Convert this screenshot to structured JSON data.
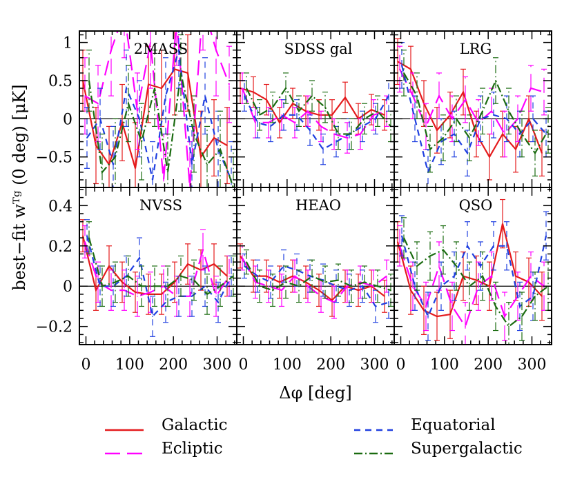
{
  "figure": {
    "xlabel": "Δφ [deg]",
    "ylabel": "best−fit wᵀᵍ (0 deg) [μK]",
    "x_ticks": [
      0,
      100,
      200,
      300
    ],
    "legend": [
      {
        "name": "Galactic",
        "color": "#e41a1c",
        "dash": "solid"
      },
      {
        "name": "Ecliptic",
        "color": "#ff00ff",
        "dash": "long-dash"
      },
      {
        "name": "Equatorial",
        "color": "#1f3fe0",
        "dash": "dash"
      },
      {
        "name": "Supergalactic",
        "color": "#1a6b10",
        "dash": "dash-dot"
      }
    ]
  },
  "chart_data": [
    {
      "type": "line",
      "title": "2MASS",
      "xlim": [
        -15,
        345
      ],
      "ylim": [
        -0.9,
        1.15
      ],
      "y_ticks": [
        -0.5,
        0,
        0.5,
        1
      ],
      "y_tick_labels": [
        "−0.5",
        "0",
        "0.5",
        "1"
      ],
      "x": [
        0,
        30,
        60,
        90,
        120,
        150,
        180,
        210,
        240,
        270,
        300,
        330
      ],
      "series": [
        {
          "name": "Galactic",
          "values": [
            0.5,
            -0.35,
            -0.6,
            -0.05,
            -0.65,
            0.45,
            0.4,
            0.65,
            0.6,
            -0.5,
            -0.25,
            -0.35
          ],
          "err": [
            0.4,
            0.5,
            0.5,
            0.5,
            0.6,
            0.5,
            0.5,
            0.6,
            0.5,
            0.6,
            0.5,
            0.5
          ]
        },
        {
          "name": "Ecliptic",
          "values": [
            0.3,
            0.2,
            0.9,
            1.4,
            0.1,
            1.0,
            -0.8,
            1.3,
            -0.9,
            1.5,
            0.9,
            0.45
          ],
          "err": [
            0.5,
            0.5,
            0.6,
            0.6,
            0.5,
            0.6,
            0.6,
            0.6,
            0.6,
            0.6,
            0.6,
            0.5
          ]
        },
        {
          "name": "Equatorial",
          "values": [
            -0.25,
            0.0,
            -0.6,
            0.4,
            0.0,
            -0.8,
            0.3,
            0.9,
            -0.6,
            0.3,
            -0.4,
            -0.8
          ],
          "err": [
            0.4,
            0.4,
            0.5,
            0.5,
            0.5,
            0.5,
            0.5,
            0.5,
            0.5,
            0.5,
            0.5,
            0.5
          ]
        },
        {
          "name": "Supergalactic",
          "values": [
            0.5,
            -0.7,
            -0.5,
            0.2,
            -0.3,
            0.4,
            -0.7,
            0.6,
            -0.2,
            -0.6,
            -0.4,
            -0.9
          ],
          "err": [
            0.4,
            0.5,
            0.5,
            0.5,
            0.5,
            0.5,
            0.5,
            0.5,
            0.5,
            0.5,
            0.5,
            0.5
          ]
        }
      ]
    },
    {
      "type": "line",
      "title": "SDSS gal",
      "xlim": [
        -15,
        345
      ],
      "ylim": [
        -0.9,
        1.15
      ],
      "y_ticks": [
        -0.5,
        0,
        0.5,
        1
      ],
      "y_tick_labels": [
        "−0.5",
        "0",
        "0.5",
        "1"
      ],
      "x": [
        0,
        30,
        60,
        90,
        120,
        150,
        180,
        210,
        240,
        270,
        300,
        330
      ],
      "series": [
        {
          "name": "Galactic",
          "values": [
            0.4,
            0.35,
            0.25,
            -0.05,
            0.2,
            0.1,
            0.05,
            0.05,
            0.28,
            0.0,
            0.12,
            0.05
          ],
          "err": [
            0.2,
            0.2,
            0.2,
            0.2,
            0.2,
            0.2,
            0.2,
            0.2,
            0.2,
            0.2,
            0.2,
            0.2
          ]
        },
        {
          "name": "Ecliptic",
          "values": [
            0.4,
            -0.05,
            -0.05,
            0.05,
            -0.05,
            0.1,
            -0.1,
            -0.2,
            -0.25,
            -0.2,
            0.05,
            0.1
          ],
          "err": [
            0.2,
            0.2,
            0.2,
            0.2,
            0.2,
            0.2,
            0.2,
            0.2,
            0.2,
            0.2,
            0.2,
            0.2
          ]
        },
        {
          "name": "Equatorial",
          "values": [
            0.3,
            -0.05,
            -0.1,
            0.05,
            0.05,
            -0.15,
            -0.4,
            -0.3,
            -0.2,
            -0.1,
            0.0,
            0.3
          ],
          "err": [
            0.2,
            0.2,
            0.2,
            0.2,
            0.2,
            0.2,
            0.2,
            0.2,
            0.2,
            0.2,
            0.2,
            0.2
          ]
        },
        {
          "name": "Supergalactic",
          "values": [
            0.4,
            0.05,
            0.15,
            0.4,
            0.1,
            0.3,
            0.15,
            -0.2,
            -0.2,
            0.0,
            0.1,
            -0.1
          ],
          "err": [
            0.2,
            0.2,
            0.2,
            0.2,
            0.2,
            0.2,
            0.2,
            0.2,
            0.2,
            0.2,
            0.2,
            0.2
          ]
        }
      ]
    },
    {
      "type": "line",
      "title": "LRG",
      "xlim": [
        -15,
        345
      ],
      "ylim": [
        -0.9,
        1.15
      ],
      "y_ticks": [
        -0.5,
        0,
        0.5,
        1
      ],
      "y_tick_labels": [
        "−0.5",
        "0",
        "0.5",
        "1"
      ],
      "x": [
        0,
        30,
        60,
        90,
        120,
        150,
        180,
        210,
        240,
        270,
        300,
        330
      ],
      "series": [
        {
          "name": "Galactic",
          "values": [
            0.75,
            0.65,
            0.2,
            -0.15,
            0.05,
            0.35,
            -0.2,
            -0.5,
            -0.2,
            -0.4,
            0.0,
            -0.45
          ],
          "err": [
            0.3,
            0.3,
            0.3,
            0.3,
            0.3,
            0.3,
            0.3,
            0.3,
            0.3,
            0.3,
            0.3,
            0.3
          ]
        },
        {
          "name": "Ecliptic",
          "values": [
            0.65,
            0.3,
            -0.1,
            0.3,
            0.0,
            0.25,
            -0.05,
            0.1,
            -0.2,
            0.0,
            0.4,
            0.35
          ],
          "err": [
            0.3,
            0.3,
            0.3,
            0.3,
            0.3,
            0.3,
            0.3,
            0.3,
            0.3,
            0.3,
            0.3,
            0.3
          ]
        },
        {
          "name": "Equatorial",
          "values": [
            0.7,
            0.0,
            -0.7,
            -0.3,
            -0.2,
            -0.45,
            0.0,
            0.05,
            0.0,
            -0.2,
            0.0,
            -0.2
          ],
          "err": [
            0.3,
            0.3,
            0.3,
            0.3,
            0.3,
            0.3,
            0.3,
            0.3,
            0.3,
            0.3,
            0.3,
            0.3
          ]
        },
        {
          "name": "Supergalactic",
          "values": [
            0.6,
            0.3,
            -0.4,
            -0.25,
            0.0,
            -0.25,
            0.1,
            0.5,
            0.1,
            -0.2,
            -0.45,
            -0.15
          ],
          "err": [
            0.3,
            0.3,
            0.3,
            0.3,
            0.3,
            0.3,
            0.3,
            0.3,
            0.3,
            0.3,
            0.3,
            0.3
          ]
        }
      ]
    },
    {
      "type": "line",
      "title": "NVSS",
      "xlim": [
        -15,
        345
      ],
      "ylim": [
        -0.29,
        0.49
      ],
      "y_ticks": [
        -0.2,
        0,
        0.2,
        0.4
      ],
      "y_tick_labels": [
        "−0.2",
        "0",
        "0.2",
        "0.4"
      ],
      "x": [
        0,
        30,
        60,
        90,
        120,
        150,
        180,
        210,
        240,
        270,
        300,
        330
      ],
      "series": [
        {
          "name": "Galactic",
          "values": [
            0.25,
            -0.02,
            0.1,
            0.02,
            -0.03,
            -0.04,
            -0.04,
            0.02,
            0.11,
            0.08,
            0.11,
            0.05
          ],
          "err": [
            0.08,
            0.1,
            0.1,
            0.1,
            0.1,
            0.1,
            0.1,
            0.1,
            0.1,
            0.1,
            0.1,
            0.1
          ]
        },
        {
          "name": "Ecliptic",
          "values": [
            0.22,
            0.02,
            -0.02,
            -0.02,
            -0.05,
            -0.03,
            0.0,
            -0.05,
            -0.05,
            0.18,
            -0.05,
            0.05
          ],
          "err": [
            0.08,
            0.1,
            0.1,
            0.1,
            0.1,
            0.1,
            0.1,
            0.1,
            0.1,
            0.1,
            0.1,
            0.1
          ]
        },
        {
          "name": "Equatorial",
          "values": [
            0.25,
            0.0,
            0.0,
            0.05,
            0.14,
            -0.15,
            -0.08,
            -0.05,
            -0.05,
            0.0,
            -0.08,
            0.05
          ],
          "err": [
            0.08,
            0.1,
            0.1,
            0.1,
            0.1,
            0.1,
            0.1,
            0.1,
            0.1,
            0.1,
            0.1,
            0.1
          ]
        },
        {
          "name": "Supergalactic",
          "values": [
            0.24,
            0.0,
            0.02,
            0.05,
            0.0,
            0.0,
            0.0,
            0.05,
            0.03,
            -0.04,
            0.0,
            0.05
          ],
          "err": [
            0.08,
            0.1,
            0.1,
            0.1,
            0.1,
            0.1,
            0.1,
            0.1,
            0.1,
            0.1,
            0.1,
            0.1
          ]
        }
      ]
    },
    {
      "type": "line",
      "title": "HEAO",
      "xlim": [
        -15,
        345
      ],
      "ylim": [
        -0.29,
        0.49
      ],
      "y_ticks": [
        -0.2,
        0,
        0.2,
        0.4
      ],
      "y_tick_labels": [
        "−0.2",
        "0",
        "0.2",
        "0.4"
      ],
      "x": [
        0,
        30,
        60,
        90,
        120,
        150,
        180,
        210,
        240,
        270,
        300,
        330
      ],
      "series": [
        {
          "name": "Galactic",
          "values": [
            0.15,
            0.05,
            0.05,
            0.02,
            0.05,
            0.02,
            -0.02,
            -0.07,
            0.0,
            -0.02,
            0.0,
            -0.05
          ],
          "err": [
            0.06,
            0.08,
            0.08,
            0.08,
            0.08,
            0.08,
            0.08,
            0.08,
            0.08,
            0.08,
            0.08,
            0.08
          ]
        },
        {
          "name": "Ecliptic",
          "values": [
            0.14,
            0.02,
            0.0,
            -0.02,
            0.05,
            0.0,
            -0.05,
            -0.08,
            0.0,
            0.02,
            0.0,
            0.05
          ],
          "err": [
            0.06,
            0.08,
            0.08,
            0.08,
            0.08,
            0.08,
            0.08,
            0.08,
            0.08,
            0.08,
            0.08,
            0.08
          ]
        },
        {
          "name": "Equatorial",
          "values": [
            0.1,
            0.05,
            0.02,
            0.1,
            0.08,
            0.05,
            0.03,
            0.0,
            -0.02,
            0.0,
            -0.1,
            -0.08
          ],
          "err": [
            0.06,
            0.08,
            0.08,
            0.08,
            0.08,
            0.08,
            0.08,
            0.08,
            0.08,
            0.08,
            0.08,
            0.08
          ]
        },
        {
          "name": "Supergalactic",
          "values": [
            0.12,
            0.0,
            -0.02,
            0.02,
            0.0,
            0.05,
            0.02,
            0.03,
            0.0,
            0.02,
            0.0,
            -0.02
          ],
          "err": [
            0.06,
            0.08,
            0.08,
            0.08,
            0.08,
            0.08,
            0.08,
            0.08,
            0.08,
            0.08,
            0.08,
            0.08
          ]
        }
      ]
    },
    {
      "type": "line",
      "title": "QSO",
      "xlim": [
        -15,
        345
      ],
      "ylim": [
        -0.29,
        0.49
      ],
      "y_ticks": [
        -0.2,
        0,
        0.2,
        0.4
      ],
      "y_tick_labels": [
        "−0.2",
        "0",
        "0.2",
        "0.4"
      ],
      "x": [
        0,
        30,
        60,
        90,
        120,
        150,
        180,
        210,
        240,
        270,
        300,
        330
      ],
      "series": [
        {
          "name": "Galactic",
          "values": [
            0.22,
            -0.02,
            -0.12,
            -0.15,
            -0.14,
            0.05,
            0.03,
            0.0,
            0.31,
            0.05,
            0.02,
            -0.05
          ],
          "err": [
            0.1,
            0.12,
            0.12,
            0.12,
            0.12,
            0.12,
            0.12,
            0.12,
            0.12,
            0.12,
            0.12,
            0.12
          ]
        },
        {
          "name": "Ecliptic",
          "values": [
            0.2,
            0.0,
            -0.1,
            0.1,
            -0.1,
            -0.2,
            0.0,
            0.05,
            -0.15,
            -0.05,
            0.05,
            0.0
          ],
          "err": [
            0.1,
            0.12,
            0.12,
            0.12,
            0.12,
            0.12,
            0.12,
            0.12,
            0.12,
            0.12,
            0.12,
            0.12
          ]
        },
        {
          "name": "Equatorial",
          "values": [
            0.25,
            0.0,
            -0.15,
            0.0,
            0.05,
            0.2,
            0.1,
            0.2,
            0.2,
            -0.1,
            -0.05,
            0.25
          ],
          "err": [
            0.1,
            0.12,
            0.12,
            0.12,
            0.12,
            0.12,
            0.12,
            0.12,
            0.12,
            0.12,
            0.12,
            0.12
          ]
        },
        {
          "name": "Supergalactic",
          "values": [
            0.24,
            0.1,
            0.15,
            0.18,
            0.1,
            0.0,
            0.05,
            -0.1,
            -0.2,
            -0.15,
            -0.05,
            0.0
          ],
          "err": [
            0.1,
            0.12,
            0.12,
            0.12,
            0.12,
            0.12,
            0.12,
            0.12,
            0.12,
            0.12,
            0.12,
            0.12
          ]
        }
      ]
    }
  ]
}
